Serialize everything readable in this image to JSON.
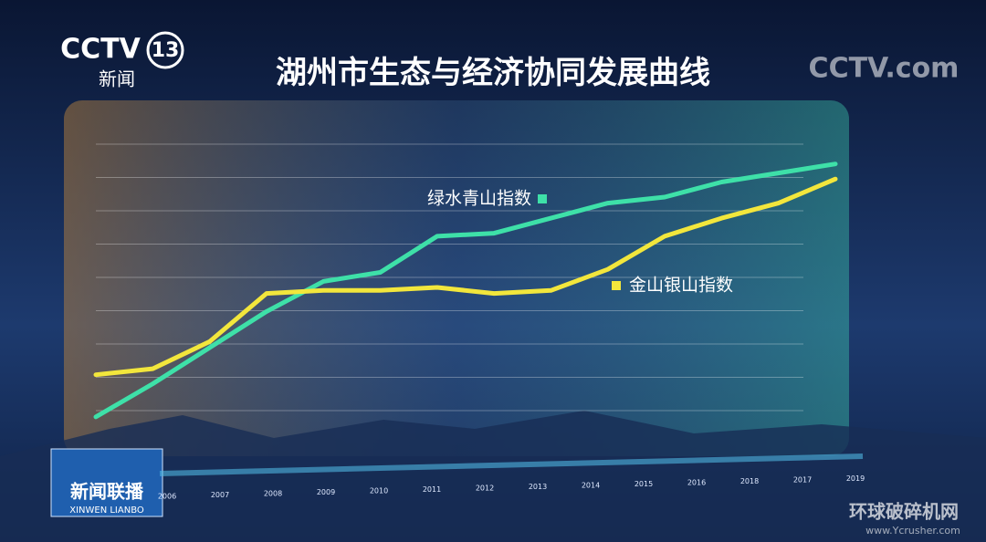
{
  "chart_data": {
    "type": "line",
    "title": "湖州市生态与经济协同发展曲线",
    "categories": [
      "2006",
      "2007",
      "2008",
      "2009",
      "2010",
      "2011",
      "2012",
      "2013",
      "2014",
      "2015",
      "2016",
      "2018",
      "2017",
      "2019"
    ],
    "series": [
      {
        "name": "绿水青山指数",
        "color": "#3ee0a8",
        "values": [
          7,
          18,
          30,
          42,
          52,
          55,
          67,
          68,
          73,
          78,
          80,
          85,
          88,
          91
        ]
      },
      {
        "name": "金山银山指数",
        "color": "#f2e63c",
        "values": [
          21,
          23,
          32,
          48,
          49,
          49,
          50,
          48,
          49,
          56,
          67,
          73,
          78,
          86
        ]
      }
    ],
    "ylim": [
      0,
      100
    ]
  },
  "logo": {
    "channel": "CCTV",
    "number": "13",
    "subtitle": "新闻",
    "watermark": "CCTV.com"
  },
  "program": {
    "name": "新闻联播",
    "pinyin": "XINWEN LIANBO"
  },
  "site": {
    "name": "环球破碎机网",
    "url": "www.Ycrusher.com"
  }
}
